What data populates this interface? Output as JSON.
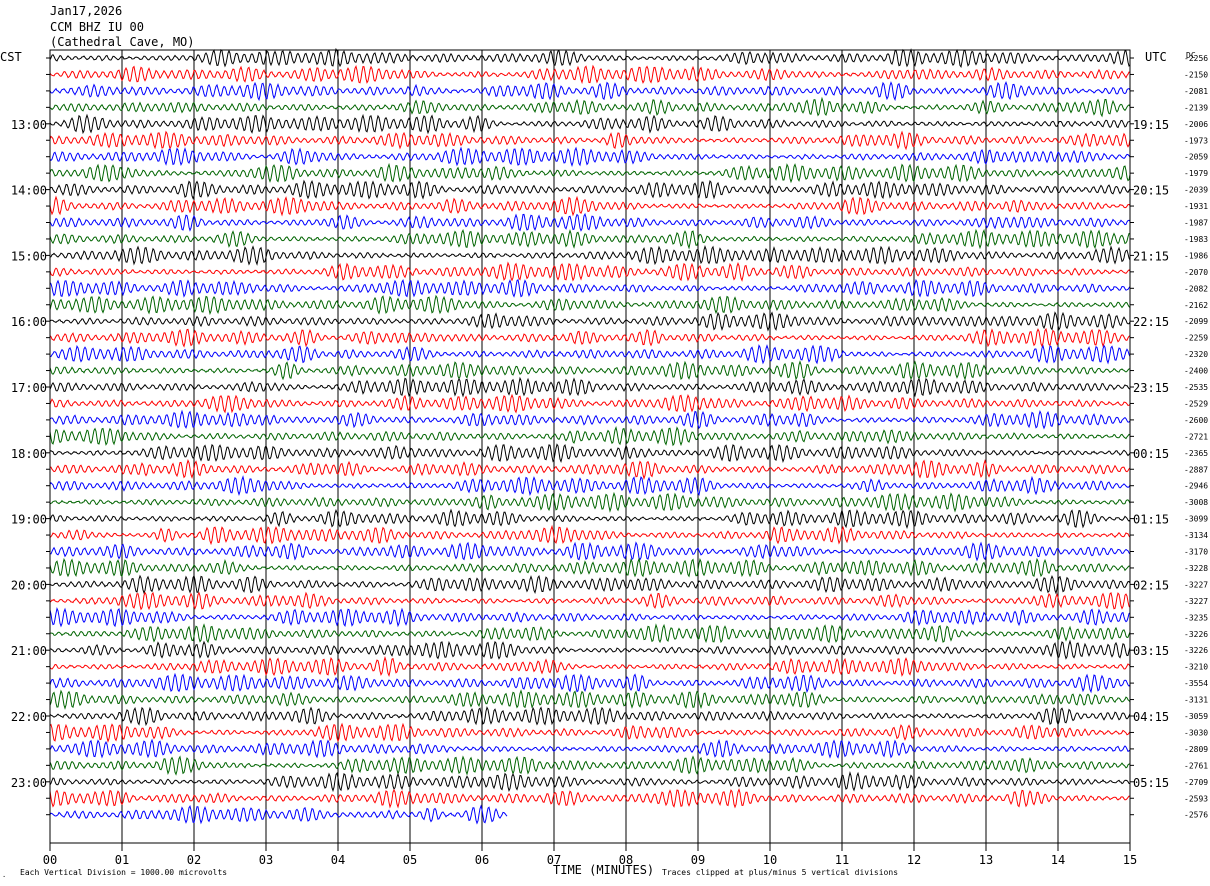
{
  "header": {
    "date": "Jan17,2026",
    "station": "CCM BHZ IU 00",
    "location": "(Cathedral Cave, MO)"
  },
  "chart_data": {
    "type": "line",
    "title": "Jan17,2026",
    "left_timezone": "CST",
    "right_timezone": "UTC",
    "dc_label": "DC",
    "xlabel": "TIME (MINUTES)",
    "xlim": [
      0,
      15
    ],
    "x_ticks": [
      "00",
      "01",
      "02",
      "03",
      "04",
      "05",
      "06",
      "07",
      "08",
      "09",
      "10",
      "11",
      "12",
      "13",
      "14",
      "15"
    ],
    "left_hour_labels": [
      "13:00",
      "14:00",
      "15:00",
      "16:00",
      "17:00",
      "18:00",
      "19:00",
      "20:00",
      "21:00",
      "22:00",
      "23:00"
    ],
    "right_hour_labels": [
      "19:15",
      "20:15",
      "21:15",
      "22:15",
      "23:15",
      "00:15",
      "01:15",
      "02:15",
      "03:15",
      "04:15",
      "05:15"
    ],
    "trace_colors": [
      "#000000",
      "#ff0000",
      "#0000ff",
      "#006400"
    ],
    "dc_offsets": [
      "-2256",
      "-2150",
      "-2081",
      "-2139",
      "-2006",
      "-1973",
      "-2059",
      "-1979",
      "-2039",
      "-1931",
      "-1987",
      "-1983",
      "-1986",
      "-2070",
      "-2082",
      "-2162",
      "-2099",
      "-2259",
      "-2320",
      "-2400",
      "-2535",
      "-2529",
      "-2600",
      "-2721",
      "-2365",
      "-2887",
      "-2946",
      "-3008",
      "-3099",
      "-3134",
      "-3170",
      "-3228",
      "-3227",
      "-3227",
      "-3235",
      "-3226",
      "-3226",
      "-3210",
      "-3554",
      "-3131",
      "-3059",
      "-3030",
      "-2809",
      "-2761",
      "-2709",
      "-2593",
      "-2576"
    ],
    "last_trace_minutes": 6.35,
    "footer_left": "Each Vertical Division = 1000.00 microvolts",
    "footer_right": "Traces clipped at plus/minus 5 vertical divisions"
  }
}
